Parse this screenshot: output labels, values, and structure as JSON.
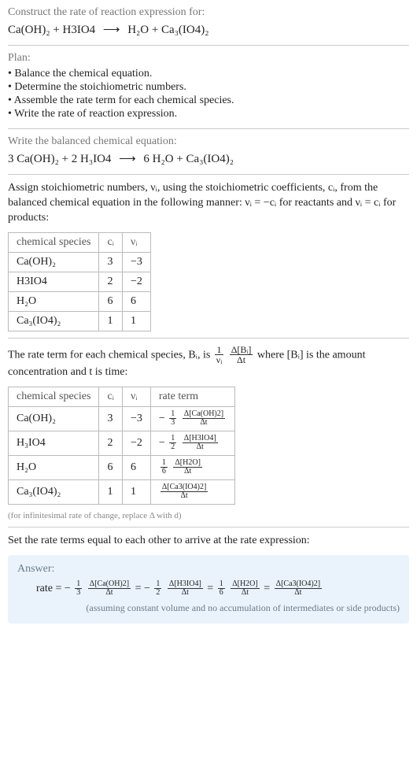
{
  "intro": {
    "title": "Construct the rate of reaction expression for:",
    "lhs": "Ca(OH)₂ + H3IO4",
    "rhs": "H₂O + Ca₃(IO4)₂"
  },
  "plan": {
    "heading": "Plan:",
    "items": [
      "• Balance the chemical equation.",
      "• Determine the stoichiometric numbers.",
      "• Assemble the rate term for each chemical species.",
      "• Write the rate of reaction expression."
    ]
  },
  "balanced": {
    "heading": "Write the balanced chemical equation:",
    "lhs": "3 Ca(OH)₂ + 2 H₃IO4",
    "rhs": "6 H₂O + Ca₃(IO4)₂"
  },
  "stoich_para_1": "Assign stoichiometric numbers, νᵢ, using the stoichiometric coefficients, cᵢ, from the balanced chemical equation in the following manner: νᵢ = −cᵢ for reactants and νᵢ = cᵢ for products:",
  "table1": {
    "headers": [
      "chemical species",
      "cᵢ",
      "νᵢ"
    ],
    "rows": [
      [
        "Ca(OH)₂",
        "3",
        "−3"
      ],
      [
        "H3IO4",
        "2",
        "−2"
      ],
      [
        "H₂O",
        "6",
        "6"
      ],
      [
        "Ca₃(IO4)₂",
        "1",
        "1"
      ]
    ]
  },
  "rateterm_para_pre": "The rate term for each chemical species, Bᵢ, is ",
  "rateterm_para_post": " where [Bᵢ] is the amount concentration and t is time:",
  "rateterm_frac1_num": "1",
  "rateterm_frac1_den": "νᵢ",
  "rateterm_frac2_num": "Δ[Bᵢ]",
  "rateterm_frac2_den": "Δt",
  "table2": {
    "headers": [
      "chemical species",
      "cᵢ",
      "νᵢ",
      "rate term"
    ],
    "rows": [
      {
        "species": "Ca(OH)₂",
        "c": "3",
        "v": "−3",
        "sign": "−",
        "coef_num": "1",
        "coef_den": "3",
        "delta_num": "Δ[Ca(OH)2]",
        "delta_den": "Δt"
      },
      {
        "species": "H₃IO4",
        "c": "2",
        "v": "−2",
        "sign": "−",
        "coef_num": "1",
        "coef_den": "2",
        "delta_num": "Δ[H3IO4]",
        "delta_den": "Δt"
      },
      {
        "species": "H₂O",
        "c": "6",
        "v": "6",
        "sign": "",
        "coef_num": "1",
        "coef_den": "6",
        "delta_num": "Δ[H2O]",
        "delta_den": "Δt"
      },
      {
        "species": "Ca₃(IO4)₂",
        "c": "1",
        "v": "1",
        "sign": "",
        "coef_num": "",
        "coef_den": "",
        "delta_num": "Δ[Ca3(IO4)2]",
        "delta_den": "Δt"
      }
    ]
  },
  "footnote": "(for infinitesimal rate of change, replace Δ with d)",
  "final_heading": "Set the rate terms equal to each other to arrive at the rate expression:",
  "answer": {
    "label": "Answer:",
    "prefix": "rate = ",
    "terms": [
      {
        "sign": "−",
        "coef_num": "1",
        "coef_den": "3",
        "delta_num": "Δ[Ca(OH)2]",
        "delta_den": "Δt"
      },
      {
        "sign": "−",
        "coef_num": "1",
        "coef_den": "2",
        "delta_num": "Δ[H3IO4]",
        "delta_den": "Δt"
      },
      {
        "sign": "",
        "coef_num": "1",
        "coef_den": "6",
        "delta_num": "Δ[H2O]",
        "delta_den": "Δt"
      },
      {
        "sign": "",
        "coef_num": "",
        "coef_den": "",
        "delta_num": "Δ[Ca3(IO4)2]",
        "delta_den": "Δt"
      }
    ],
    "note": "(assuming constant volume and no accumulation of intermediates or side products)"
  }
}
